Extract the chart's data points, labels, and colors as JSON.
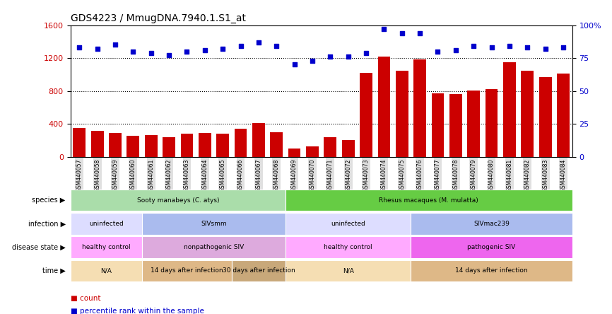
{
  "title": "GDS4223 / MmugDNA.7940.1.S1_at",
  "samples": [
    "GSM440057",
    "GSM440058",
    "GSM440059",
    "GSM440060",
    "GSM440061",
    "GSM440062",
    "GSM440063",
    "GSM440064",
    "GSM440065",
    "GSM440066",
    "GSM440067",
    "GSM440068",
    "GSM440069",
    "GSM440070",
    "GSM440071",
    "GSM440072",
    "GSM440073",
    "GSM440074",
    "GSM440075",
    "GSM440076",
    "GSM440077",
    "GSM440078",
    "GSM440079",
    "GSM440080",
    "GSM440081",
    "GSM440082",
    "GSM440083",
    "GSM440084"
  ],
  "counts": [
    350,
    320,
    290,
    260,
    265,
    240,
    280,
    295,
    285,
    340,
    410,
    300,
    100,
    130,
    240,
    205,
    1020,
    1220,
    1050,
    1180,
    770,
    760,
    810,
    820,
    1150,
    1050,
    970,
    1010
  ],
  "percentiles": [
    83,
    82,
    85,
    80,
    79,
    77,
    80,
    81,
    82,
    84,
    87,
    84,
    70,
    73,
    76,
    76,
    79,
    97,
    94,
    94,
    80,
    81,
    84,
    83,
    84,
    83,
    82,
    83
  ],
  "ylim_left": [
    0,
    1600
  ],
  "ylim_right": [
    0,
    100
  ],
  "yticks_left": [
    0,
    400,
    800,
    1200,
    1600
  ],
  "yticks_right": [
    0,
    25,
    50,
    75,
    100
  ],
  "bar_color": "#cc0000",
  "dot_color": "#0000cc",
  "background_color": "#ffffff",
  "species_row": {
    "label": "species",
    "segments": [
      {
        "text": "Sooty manabeys (C. atys)",
        "start": 0,
        "end": 12,
        "color": "#aaddaa"
      },
      {
        "text": "Rhesus macaques (M. mulatta)",
        "start": 12,
        "end": 28,
        "color": "#66cc44"
      }
    ]
  },
  "infection_row": {
    "label": "infection",
    "segments": [
      {
        "text": "uninfected",
        "start": 0,
        "end": 4,
        "color": "#ddddff"
      },
      {
        "text": "SIVsmm",
        "start": 4,
        "end": 12,
        "color": "#aabbee"
      },
      {
        "text": "uninfected",
        "start": 12,
        "end": 19,
        "color": "#ddddff"
      },
      {
        "text": "SIVmac239",
        "start": 19,
        "end": 28,
        "color": "#aabbee"
      }
    ]
  },
  "disease_row": {
    "label": "disease state",
    "segments": [
      {
        "text": "healthy control",
        "start": 0,
        "end": 4,
        "color": "#ffaaff"
      },
      {
        "text": "nonpathogenic SIV",
        "start": 4,
        "end": 12,
        "color": "#ddaadd"
      },
      {
        "text": "healthy control",
        "start": 12,
        "end": 19,
        "color": "#ffaaff"
      },
      {
        "text": "pathogenic SIV",
        "start": 19,
        "end": 28,
        "color": "#ee66ee"
      }
    ]
  },
  "time_row": {
    "label": "time",
    "segments": [
      {
        "text": "N/A",
        "start": 0,
        "end": 4,
        "color": "#f5deb3"
      },
      {
        "text": "14 days after infection",
        "start": 4,
        "end": 9,
        "color": "#deb887"
      },
      {
        "text": "30 days after infection",
        "start": 9,
        "end": 12,
        "color": "#c8a87a"
      },
      {
        "text": "N/A",
        "start": 12,
        "end": 19,
        "color": "#f5deb3"
      },
      {
        "text": "14 days after infection",
        "start": 19,
        "end": 28,
        "color": "#deb887"
      }
    ]
  },
  "legend_items": [
    {
      "color": "#cc0000",
      "label": "count"
    },
    {
      "color": "#0000cc",
      "label": "percentile rank within the sample"
    }
  ]
}
